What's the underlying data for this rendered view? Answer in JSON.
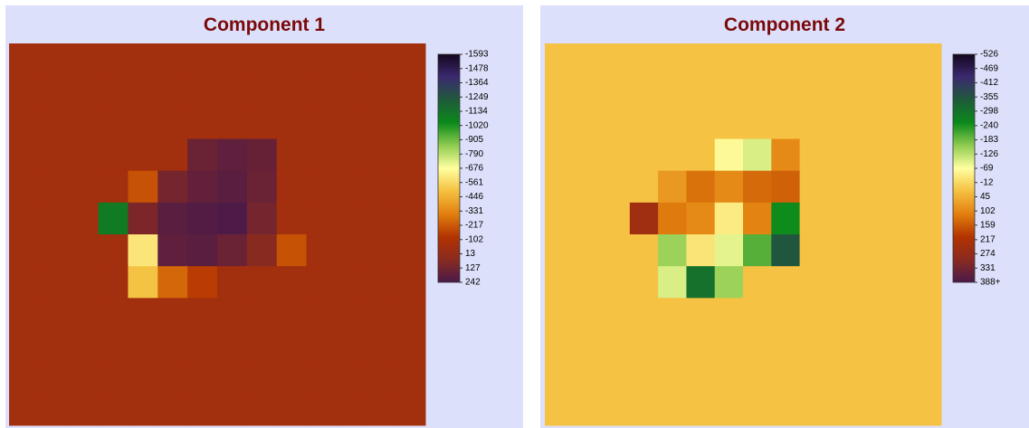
{
  "chart_data": [
    {
      "type": "heatmap",
      "title": "Component 1",
      "colorscale": [
        "#14061e",
        "#3b2a70",
        "#1f5a3a",
        "#0a8a1a",
        "#8fcc50",
        "#ffffa0",
        "#f5c040",
        "#e2800f",
        "#b33300",
        "#8a2a20",
        "#4a1a4a"
      ],
      "zticks": [
        -1593,
        -1478,
        -1364,
        -1249,
        -1134,
        -1020,
        -905,
        -790,
        -676,
        -561,
        -446,
        -331,
        -217,
        -102,
        13,
        127,
        242
      ],
      "z": [
        [
          -50,
          -50,
          -50,
          -50,
          -50,
          -50,
          -50,
          -50,
          -50,
          -50,
          -50,
          -50,
          -50,
          -50
        ],
        [
          -50,
          -50,
          -50,
          -50,
          -50,
          -50,
          -50,
          -50,
          -50,
          -50,
          -50,
          -50,
          -50,
          -50
        ],
        [
          -50,
          -50,
          -50,
          -50,
          -50,
          -50,
          -50,
          -50,
          -50,
          -50,
          -50,
          -50,
          -50,
          -50
        ],
        [
          -50,
          -50,
          -50,
          -50,
          -50,
          -50,
          150,
          180,
          160,
          -50,
          -50,
          -50,
          -50,
          -50
        ],
        [
          -50,
          -50,
          -50,
          -50,
          -200,
          120,
          170,
          200,
          150,
          -50,
          -50,
          -50,
          -50,
          -50
        ],
        [
          -50,
          -50,
          -50,
          -1100,
          100,
          200,
          220,
          230,
          120,
          -50,
          -50,
          -50,
          -50,
          -50
        ],
        [
          -50,
          -50,
          -50,
          -50,
          -600,
          180,
          200,
          150,
          60,
          -200,
          -50,
          -50,
          -50,
          -50
        ],
        [
          -50,
          -50,
          -50,
          -50,
          -500,
          -250,
          -150,
          -50,
          -50,
          -50,
          -50,
          -50,
          -50,
          -50
        ],
        [
          -50,
          -50,
          -50,
          -50,
          -50,
          -50,
          -50,
          -50,
          -50,
          -50,
          -50,
          -50,
          -50,
          -50
        ],
        [
          -50,
          -50,
          -50,
          -50,
          -50,
          -50,
          -50,
          -50,
          -50,
          -50,
          -50,
          -50,
          -50,
          -50
        ],
        [
          -50,
          -50,
          -50,
          -50,
          -50,
          -50,
          -50,
          -50,
          -50,
          -50,
          -50,
          -50,
          -50,
          -50
        ],
        [
          -50,
          -50,
          -50,
          -50,
          -50,
          -50,
          -50,
          -50,
          -50,
          -50,
          -50,
          -50,
          -50,
          -50
        ]
      ]
    },
    {
      "type": "heatmap",
      "title": "Component 2",
      "colorscale": [
        "#14061e",
        "#3b2a70",
        "#1f5a3a",
        "#0a8a1a",
        "#8fcc50",
        "#ffffa0",
        "#f5c040",
        "#e2800f",
        "#b33300",
        "#8a2a20",
        "#4a1a4a"
      ],
      "zticks": [
        -526,
        -469,
        -412,
        -355,
        -298,
        -240,
        -183,
        -126,
        -69,
        -12,
        45,
        102,
        159,
        217,
        274,
        331,
        {
          "value": 388,
          "label": "388+"
        }
      ],
      "z": [
        [
          20,
          20,
          20,
          20,
          20,
          20,
          20,
          20,
          20,
          20,
          20,
          20,
          20,
          20
        ],
        [
          20,
          20,
          20,
          20,
          20,
          20,
          20,
          20,
          20,
          20,
          20,
          20,
          20,
          20
        ],
        [
          20,
          20,
          20,
          20,
          20,
          20,
          20,
          20,
          20,
          20,
          20,
          20,
          20,
          20
        ],
        [
          20,
          20,
          20,
          20,
          20,
          20,
          -60,
          -100,
          100,
          20,
          20,
          20,
          20,
          20
        ],
        [
          20,
          20,
          20,
          20,
          80,
          130,
          100,
          140,
          150,
          20,
          20,
          20,
          20,
          20
        ],
        [
          20,
          20,
          20,
          250,
          120,
          100,
          -40,
          110,
          -250,
          20,
          20,
          20,
          20,
          20
        ],
        [
          20,
          20,
          20,
          20,
          -150,
          -30,
          -90,
          -200,
          -350,
          20,
          20,
          20,
          20,
          20
        ],
        [
          20,
          20,
          20,
          20,
          -100,
          -300,
          -150,
          20,
          20,
          20,
          20,
          20,
          20,
          20
        ],
        [
          20,
          20,
          20,
          20,
          20,
          20,
          20,
          20,
          20,
          20,
          20,
          20,
          20,
          20
        ],
        [
          20,
          20,
          20,
          20,
          20,
          20,
          20,
          20,
          20,
          20,
          20,
          20,
          20,
          20
        ],
        [
          20,
          20,
          20,
          20,
          20,
          20,
          20,
          20,
          20,
          20,
          20,
          20,
          20,
          20
        ],
        [
          20,
          20,
          20,
          20,
          20,
          20,
          20,
          20,
          20,
          20,
          20,
          20,
          20,
          20
        ]
      ]
    }
  ]
}
